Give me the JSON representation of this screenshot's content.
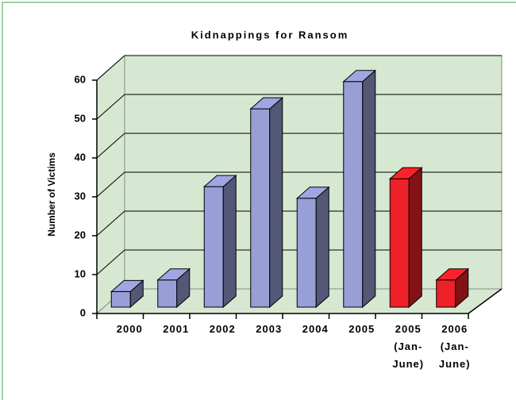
{
  "chart_data": {
    "type": "bar3d",
    "title": "Kidnappings for Ransom",
    "y_label": "Number of Victims",
    "categories": [
      "2000",
      "2001",
      "2002",
      "2003",
      "2004",
      "2005",
      "2005\n(Jan-\nJune)",
      "2006\n(Jan-\nJune)"
    ],
    "values": [
      4,
      7,
      31,
      51,
      28,
      58,
      33,
      7
    ],
    "colors": [
      "#989ed6",
      "#989ed6",
      "#989ed6",
      "#989ed6",
      "#989ed6",
      "#989ed6",
      "#ee2028",
      "#ee2028"
    ],
    "ylim": [
      0,
      60
    ],
    "yticks": [
      0,
      10,
      20,
      30,
      40,
      50,
      60
    ],
    "grid": true
  }
}
